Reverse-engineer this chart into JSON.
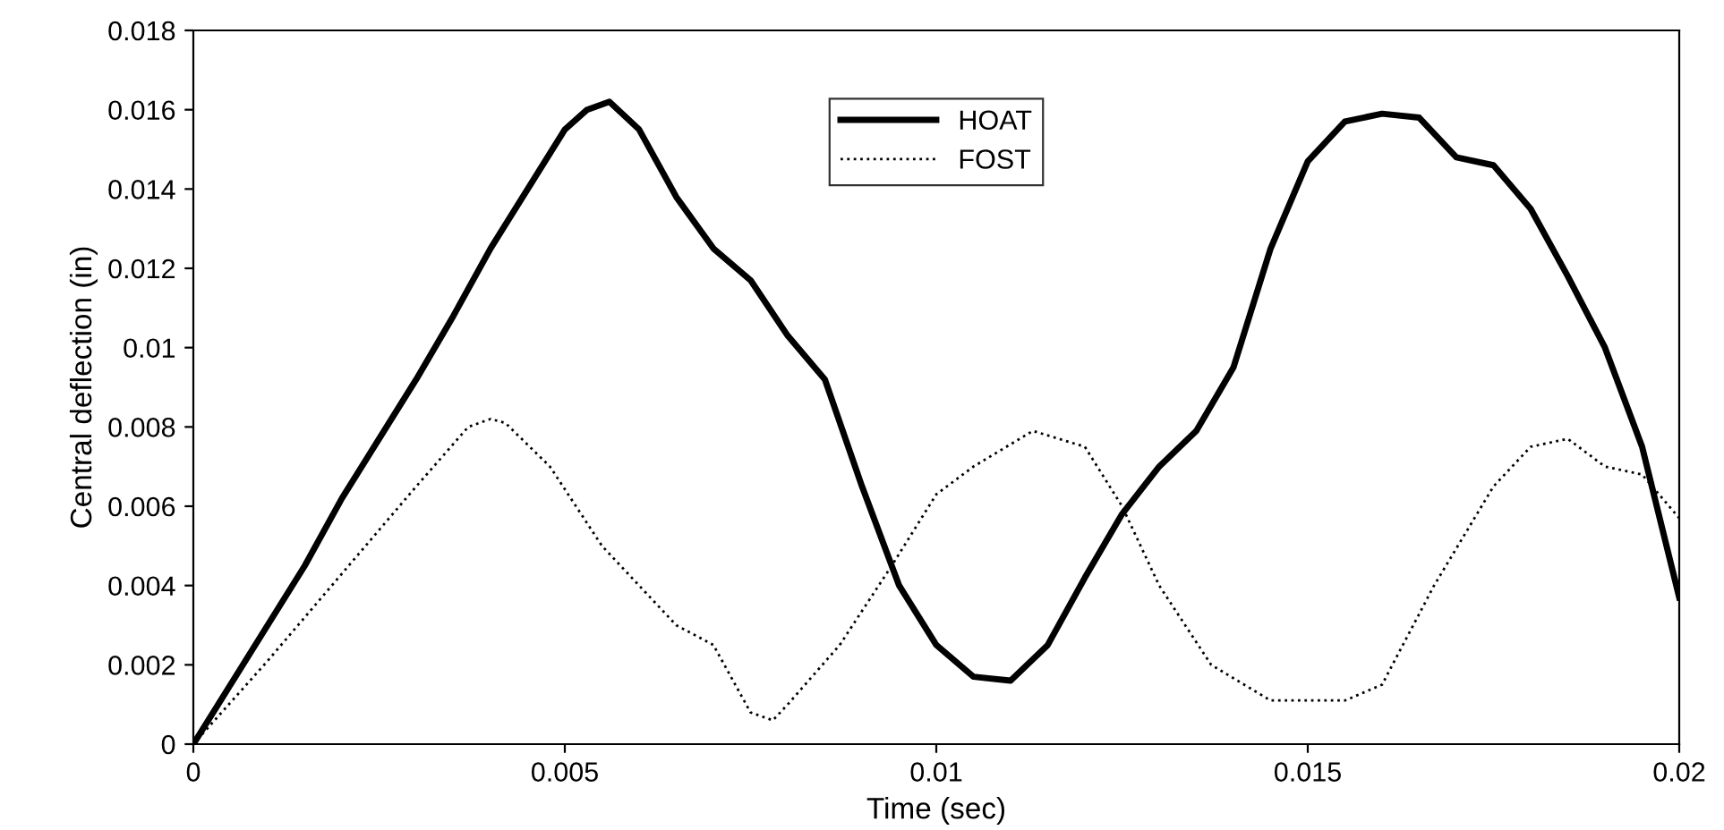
{
  "chart_data": {
    "type": "line",
    "xlabel": "Time (sec)",
    "ylabel": "Central deflection (in)",
    "xlim": [
      0,
      0.02
    ],
    "xticks": [
      0,
      0.005,
      0.01,
      0.015,
      0.02
    ],
    "ylim": [
      0,
      0.018
    ],
    "yticks": [
      0,
      0.002,
      0.004,
      0.006,
      0.008,
      0.01,
      0.012,
      0.014,
      0.016,
      0.018
    ],
    "grid": false,
    "legend": "top",
    "marker": "none",
    "series": [
      {
        "name": "HOAT",
        "color": "#000000",
        "line_style": "solid",
        "x": [
          0,
          0.0005,
          0.001,
          0.0015,
          0.002,
          0.0025,
          0.003,
          0.0035,
          0.004,
          0.0045,
          0.005,
          0.0053,
          0.0056,
          0.006,
          0.0065,
          0.007,
          0.0075,
          0.008,
          0.0085,
          0.009,
          0.0095,
          0.01,
          0.0105,
          0.011,
          0.0115,
          0.012,
          0.0125,
          0.013,
          0.0135,
          0.014,
          0.0145,
          0.015,
          0.0155,
          0.016,
          0.0165,
          0.017,
          0.0175,
          0.018,
          0.0185,
          0.019,
          0.0195,
          0.02
        ],
        "values": [
          0,
          0.0015,
          0.003,
          0.0045,
          0.0062,
          0.0077,
          0.0092,
          0.0108,
          0.0125,
          0.014,
          0.0155,
          0.016,
          0.0162,
          0.0155,
          0.0138,
          0.0125,
          0.0117,
          0.0103,
          0.0092,
          0.0065,
          0.004,
          0.0025,
          0.0017,
          0.0016,
          0.0025,
          0.0042,
          0.0058,
          0.007,
          0.0079,
          0.0095,
          0.0125,
          0.0147,
          0.0157,
          0.0159,
          0.0158,
          0.0148,
          0.0146,
          0.0135,
          0.0118,
          0.01,
          0.0075,
          0.0037
        ]
      },
      {
        "name": "FOST",
        "color": "#000000",
        "line_style": "dotted",
        "x": [
          0,
          0.001,
          0.002,
          0.003,
          0.0037,
          0.004,
          0.0042,
          0.0048,
          0.0055,
          0.0065,
          0.007,
          0.0075,
          0.0078,
          0.008,
          0.0087,
          0.0094,
          0.01,
          0.0105,
          0.0113,
          0.012,
          0.0125,
          0.013,
          0.0137,
          0.0145,
          0.0155,
          0.016,
          0.0167,
          0.0175,
          0.018,
          0.0185,
          0.019,
          0.0195,
          0.02
        ],
        "values": [
          0,
          0.0021,
          0.0043,
          0.0065,
          0.008,
          0.0082,
          0.0081,
          0.007,
          0.005,
          0.003,
          0.0025,
          0.0008,
          0.0006,
          0.001,
          0.0025,
          0.0045,
          0.0063,
          0.007,
          0.0079,
          0.0075,
          0.006,
          0.004,
          0.002,
          0.0011,
          0.0011,
          0.0015,
          0.004,
          0.0065,
          0.0075,
          0.0077,
          0.007,
          0.0068,
          0.0057
        ]
      }
    ]
  }
}
